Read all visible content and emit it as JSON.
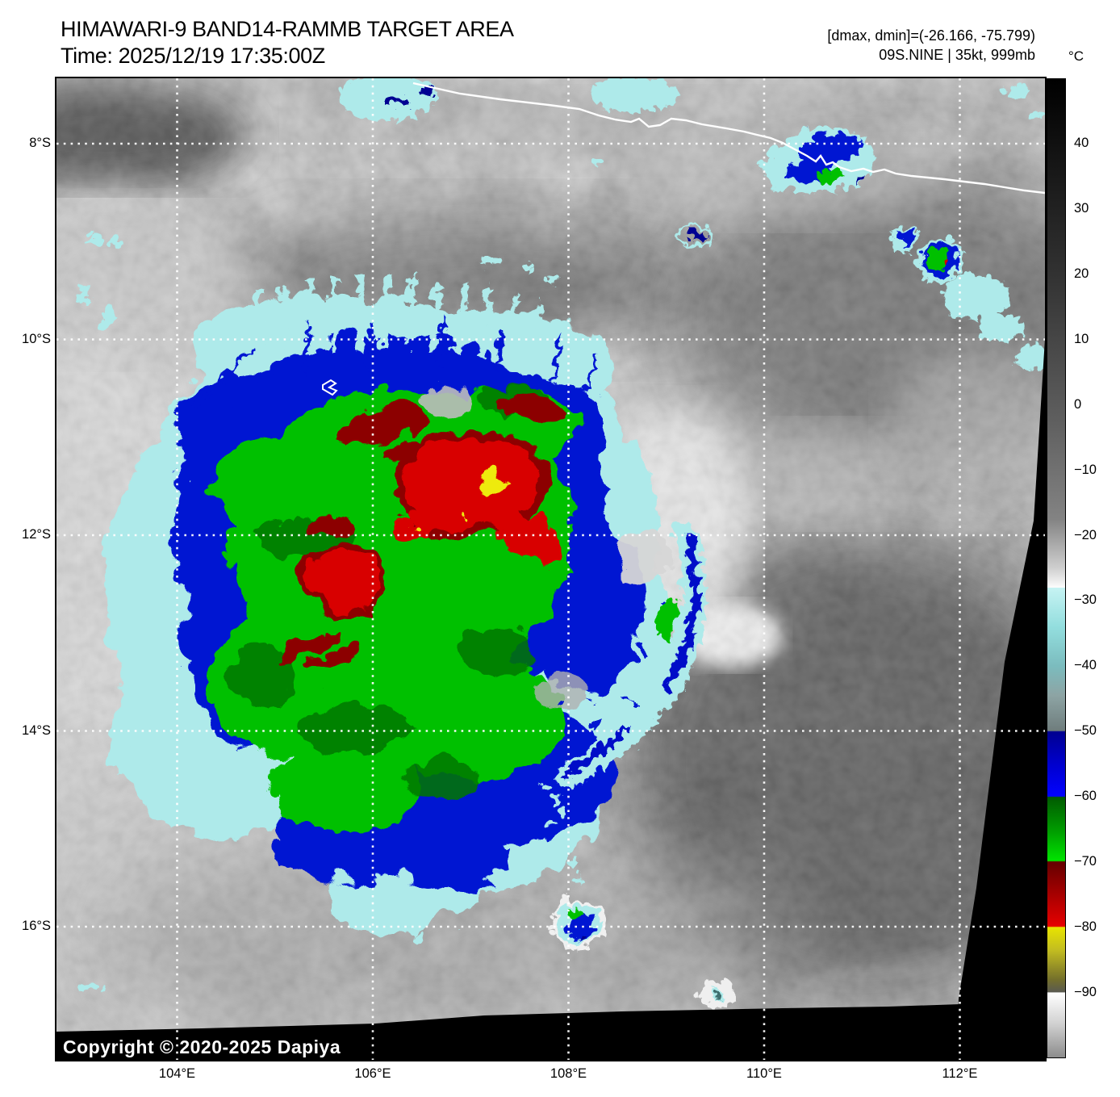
{
  "header": {
    "title": "HIMAWARI-9 BAND14-RAMMB TARGET AREA",
    "time": "Time: 2025/12/19 17:35:00Z",
    "dmax_dmin": "[dmax, dmin]=(-26.166, -75.799)",
    "storm_info": "09S.NINE | 35kt, 999mb"
  },
  "colorbar": {
    "unit": "°C",
    "temps": [
      40,
      30,
      20,
      10,
      0,
      -10,
      -20,
      -30,
      -40,
      -50,
      -60,
      -70,
      -80,
      -90
    ],
    "tick_labels": [
      "40",
      "30",
      "20",
      "10",
      "0",
      "−10",
      "−20",
      "−30",
      "−40",
      "−50",
      "−60",
      "−70",
      "−80",
      "−90"
    ],
    "range_top_c": 50,
    "range_bottom_c": -100,
    "stops": [
      {
        "p": 0,
        "c": "#000000"
      },
      {
        "p": 20,
        "c": "#323232"
      },
      {
        "p": 35,
        "c": "#5f5f5f"
      },
      {
        "p": 45,
        "c": "#838383"
      },
      {
        "p": 50,
        "c": "#cfcfcf"
      },
      {
        "p": 52,
        "c": "#fdfdfd"
      },
      {
        "p": 52,
        "c": "#c6f3f3"
      },
      {
        "p": 56,
        "c": "#93dede"
      },
      {
        "p": 60,
        "c": "#7bbcbe"
      },
      {
        "p": 63,
        "c": "#8da4a4"
      },
      {
        "p": 66.6,
        "c": "#6f7d7d"
      },
      {
        "p": 66.7,
        "c": "#000090"
      },
      {
        "p": 70,
        "c": "#0000cd"
      },
      {
        "p": 73.3,
        "c": "#0202ff"
      },
      {
        "p": 73.4,
        "c": "#015a01"
      },
      {
        "p": 77,
        "c": "#00a000"
      },
      {
        "p": 79.9,
        "c": "#00e400"
      },
      {
        "p": 80,
        "c": "#640000"
      },
      {
        "p": 83,
        "c": "#a00000"
      },
      {
        "p": 86.6,
        "c": "#e60000"
      },
      {
        "p": 86.7,
        "c": "#e8e400"
      },
      {
        "p": 89,
        "c": "#c3bd20"
      },
      {
        "p": 92,
        "c": "#75702b"
      },
      {
        "p": 93.3,
        "c": "#5a5a50"
      },
      {
        "p": 93.4,
        "c": "#ffffff"
      },
      {
        "p": 96.5,
        "c": "#d2d2d2"
      },
      {
        "p": 100,
        "c": "#8c8c8c"
      }
    ]
  },
  "map": {
    "lon_labels": [
      "104°E",
      "106°E",
      "108°E",
      "110°E",
      "112°E"
    ],
    "lat_labels": [
      "8°S",
      "10°S",
      "12°S",
      "14°S",
      "16°S"
    ],
    "copyright": "Copyright © 2020-2025 Dapiya"
  },
  "palette": {
    "fringe_cyan": "#aeeaea",
    "bright_cyan": "#d6f7f7",
    "deep_blue": "#0016d2",
    "navy": "#000092",
    "green": "#00c000",
    "dark_green": "#007800",
    "maroon": "#8c0000",
    "red": "#d80000",
    "yellow": "#eeea10",
    "coastline_white": "#ffffff",
    "grid_white": "#ffffff",
    "space_black": "#000000"
  }
}
